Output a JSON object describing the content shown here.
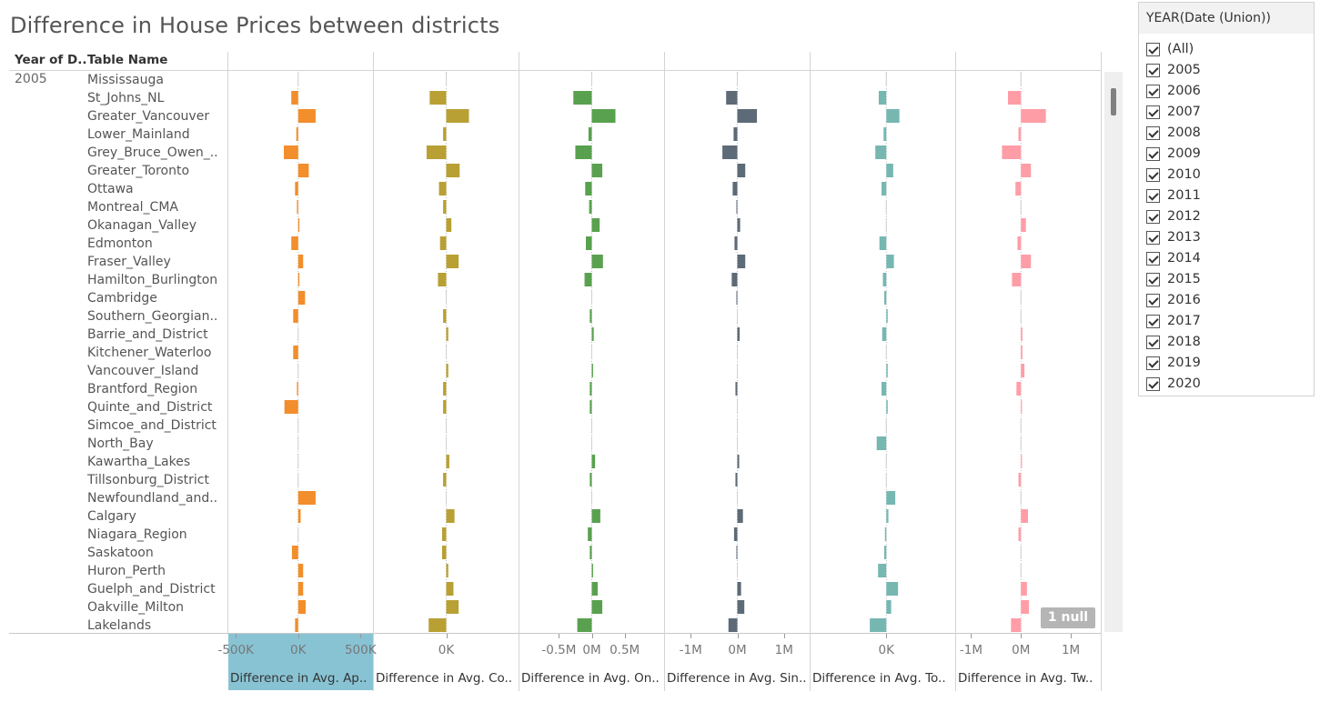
{
  "title": "Difference in House Prices between districts",
  "headers": {
    "year_col": "Year of D..",
    "name_col": "Table Name"
  },
  "year_value": "2005",
  "null_badge": "1 null",
  "filter": {
    "title": "YEAR(Date (Union))",
    "items": [
      "(All)",
      "2005",
      "2006",
      "2007",
      "2008",
      "2009",
      "2010",
      "2011",
      "2012",
      "2013",
      "2014",
      "2015",
      "2016",
      "2017",
      "2018",
      "2019",
      "2020"
    ]
  },
  "chart_data": {
    "type": "bar",
    "orientation": "horizontal",
    "categories": [
      "Mississauga",
      "St_Johns_NL",
      "Greater_Vancouver",
      "Lower_Mainland",
      "Grey_Bruce_Owen_..",
      "Greater_Toronto",
      "Ottawa",
      "Montreal_CMA",
      "Okanagan_Valley",
      "Edmonton",
      "Fraser_Valley",
      "Hamilton_Burlington",
      "Cambridge",
      "Southern_Georgian..",
      "Barrie_and_District",
      "Kitchener_Waterloo",
      "Vancouver_Island",
      "Brantford_Region",
      "Quinte_and_District",
      "Simcoe_and_District",
      "North_Bay",
      "Kawartha_Lakes",
      "Tillsonburg_District",
      "Newfoundland_and..",
      "Calgary",
      "Niagara_Region",
      "Saskatoon",
      "Huron_Perth",
      "Guelph_and_District",
      "Oakville_Milton",
      "Lakelands"
    ],
    "series": [
      {
        "name": "Difference in Avg. Ap..",
        "color": "#f28e2b",
        "xlim": [
          -560,
          600
        ],
        "ticks": [
          {
            "v": -500,
            "label": "-500K"
          },
          {
            "v": 0,
            "label": "0K"
          },
          {
            "v": 500,
            "label": "500K"
          }
        ],
        "values": [
          0,
          -55,
          140,
          -15,
          -115,
          85,
          -25,
          -10,
          10,
          -55,
          40,
          10,
          55,
          -40,
          5,
          -40,
          5,
          -10,
          -110,
          0,
          0,
          0,
          0,
          140,
          20,
          -5,
          -50,
          40,
          40,
          60,
          -25
        ]
      },
      {
        "name": "Difference in Avg. Co..",
        "color": "#b8a034",
        "xlim": [
          -350,
          350
        ],
        "ticks": [
          {
            "v": 0,
            "label": "0K"
          }
        ],
        "values": [
          0,
          -80,
          110,
          -15,
          -95,
          65,
          -35,
          -15,
          25,
          -30,
          60,
          -40,
          0,
          -15,
          10,
          0,
          10,
          -15,
          -15,
          0,
          0,
          15,
          -15,
          0,
          40,
          -20,
          -20,
          10,
          35,
          60,
          -85
        ]
      },
      {
        "name": "Difference in Avg. On..",
        "color": "#59a14f",
        "xlim": [
          -1.1,
          1.1
        ],
        "ticks": [
          {
            "v": -0.5,
            "label": "-0.5M"
          },
          {
            "v": 0,
            "label": "0M"
          },
          {
            "v": 0.5,
            "label": "0.5M"
          }
        ],
        "values": [
          0,
          -0.28,
          0.36,
          -0.05,
          -0.25,
          0.16,
          -0.1,
          -0.04,
          0.12,
          -0.09,
          0.17,
          -0.11,
          0,
          -0.03,
          0.03,
          0,
          0.02,
          -0.03,
          -0.03,
          0,
          0,
          0.05,
          -0.03,
          0,
          0.13,
          -0.06,
          -0.03,
          0.02,
          0.09,
          0.16,
          -0.22
        ]
      },
      {
        "name": "Difference in Avg. Sin..",
        "color": "#5d6a77",
        "xlim": [
          -1.55,
          1.55
        ],
        "ticks": [
          {
            "v": -1,
            "label": "-1M"
          },
          {
            "v": 0,
            "label": "0M"
          },
          {
            "v": 1,
            "label": "1M"
          }
        ],
        "values": [
          0,
          -0.24,
          0.42,
          -0.08,
          -0.32,
          0.17,
          -0.1,
          -0.02,
          0.06,
          -0.06,
          0.17,
          -0.12,
          -0.02,
          0,
          0.05,
          0,
          0,
          -0.04,
          0,
          0,
          0,
          0.04,
          -0.04,
          0,
          0.12,
          -0.07,
          -0.02,
          0,
          0.08,
          0.15,
          -0.19
        ]
      },
      {
        "name": "Difference in Avg. To..",
        "color": "#76b7b2",
        "xlim": [
          -550,
          500
        ],
        "ticks": [
          {
            "v": 0,
            "label": "0K"
          }
        ],
        "values": [
          0,
          -55,
          95,
          -20,
          -80,
          50,
          -35,
          5,
          5,
          -50,
          55,
          -25,
          -15,
          10,
          -30,
          0,
          10,
          -35,
          10,
          0,
          -70,
          0,
          0,
          65,
          15,
          -10,
          -15,
          -60,
          85,
          35,
          -120
        ]
      },
      {
        "name": "Difference in Avg. Tw..",
        "color": "#ff9da7",
        "xlim": [
          -1.3,
          1.6
        ],
        "ticks": [
          {
            "v": -1,
            "label": "-1M"
          },
          {
            "v": 0,
            "label": "0M"
          },
          {
            "v": 1,
            "label": "1M"
          }
        ],
        "values": [
          0,
          -0.26,
          0.5,
          -0.05,
          -0.38,
          0.2,
          -0.11,
          0.01,
          0.1,
          -0.07,
          0.2,
          -0.18,
          0,
          0,
          0.03,
          0.03,
          0.07,
          -0.09,
          0.02,
          0,
          0,
          0.02,
          -0.05,
          0,
          0.14,
          -0.05,
          0,
          0,
          0.12,
          0.16,
          -0.2
        ]
      }
    ]
  }
}
